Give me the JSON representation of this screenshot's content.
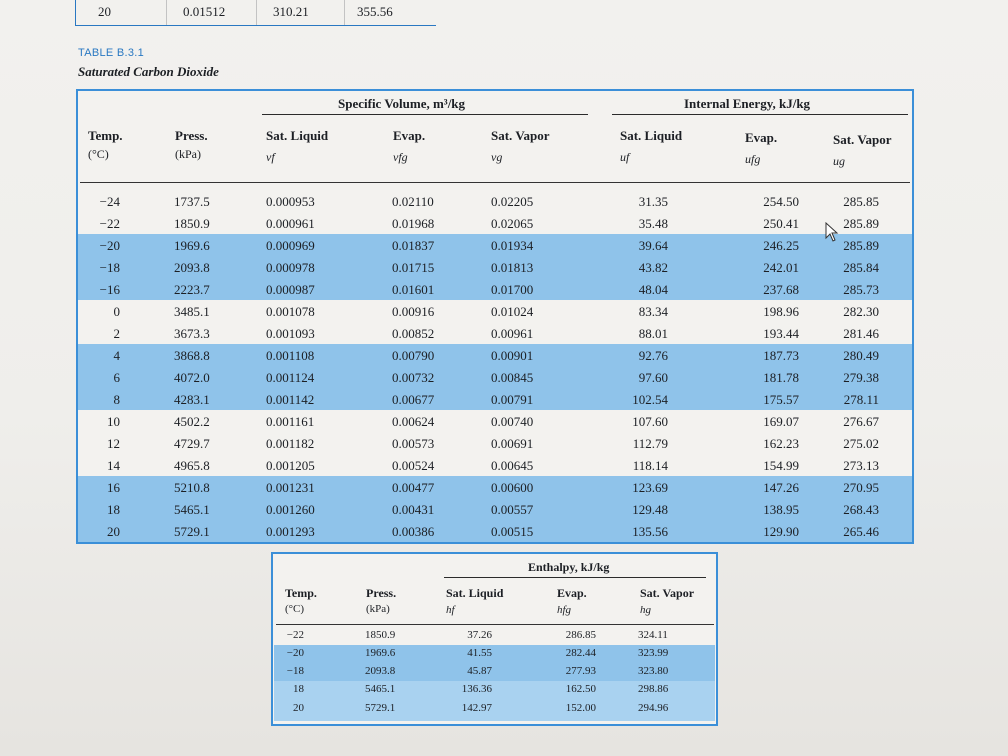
{
  "top_row": [
    "20",
    "0.01512",
    "310.21",
    "355.56"
  ],
  "table": {
    "label": "TABLE B.3.1",
    "title": "Saturated Carbon Dioxide",
    "groups": {
      "volume": "Specific Volume, m³/kg",
      "energy": "Internal Energy, kJ/kg"
    },
    "columns": {
      "temp": "Temp.",
      "temp_unit": "(°C)",
      "press": "Press.",
      "press_unit": "(kPa)",
      "vf": "Sat. Liquid",
      "vf_sym": "vf",
      "vfg": "Evap.",
      "vfg_sym": "vfg",
      "vg": "Sat. Vapor",
      "vg_sym": "vg",
      "uf": "Sat. Liquid",
      "uf_sym": "uf",
      "ufg": "Evap.",
      "ufg_sym": "ufg",
      "ug": "Sat. Vapor",
      "ug_sym": "ug"
    },
    "rows": [
      [
        "−24",
        "1737.5",
        "0.000953",
        "0.02110",
        "0.02205",
        "31.35",
        "254.50",
        "285.85"
      ],
      [
        "−22",
        "1850.9",
        "0.000961",
        "0.01968",
        "0.02065",
        "35.48",
        "250.41",
        "285.89"
      ],
      [
        "−20",
        "1969.6",
        "0.000969",
        "0.01837",
        "0.01934",
        "39.64",
        "246.25",
        "285.89"
      ],
      [
        "−18",
        "2093.8",
        "0.000978",
        "0.01715",
        "0.01813",
        "43.82",
        "242.01",
        "285.84"
      ],
      [
        "−16",
        "2223.7",
        "0.000987",
        "0.01601",
        "0.01700",
        "48.04",
        "237.68",
        "285.73"
      ],
      [
        "0",
        "3485.1",
        "0.001078",
        "0.00916",
        "0.01024",
        "83.34",
        "198.96",
        "282.30"
      ],
      [
        "2",
        "3673.3",
        "0.001093",
        "0.00852",
        "0.00961",
        "88.01",
        "193.44",
        "281.46"
      ],
      [
        "4",
        "3868.8",
        "0.001108",
        "0.00790",
        "0.00901",
        "92.76",
        "187.73",
        "280.49"
      ],
      [
        "6",
        "4072.0",
        "0.001124",
        "0.00732",
        "0.00845",
        "97.60",
        "181.78",
        "279.38"
      ],
      [
        "8",
        "4283.1",
        "0.001142",
        "0.00677",
        "0.00791",
        "102.54",
        "175.57",
        "278.11"
      ],
      [
        "10",
        "4502.2",
        "0.001161",
        "0.00624",
        "0.00740",
        "107.60",
        "169.07",
        "276.67"
      ],
      [
        "12",
        "4729.7",
        "0.001182",
        "0.00573",
        "0.00691",
        "112.79",
        "162.23",
        "275.02"
      ],
      [
        "14",
        "4965.8",
        "0.001205",
        "0.00524",
        "0.00645",
        "118.14",
        "154.99",
        "273.13"
      ],
      [
        "16",
        "5210.8",
        "0.001231",
        "0.00477",
        "0.00600",
        "123.69",
        "147.26",
        "270.95"
      ],
      [
        "18",
        "5465.1",
        "0.001260",
        "0.00431",
        "0.00557",
        "129.48",
        "138.95",
        "268.43"
      ],
      [
        "20",
        "5729.1",
        "0.001293",
        "0.00386",
        "0.00515",
        "135.56",
        "129.90",
        "265.46"
      ]
    ]
  },
  "enthalpy": {
    "group": "Enthalpy, kJ/kg",
    "columns": {
      "temp": "Temp.",
      "temp_unit": "(°C)",
      "press": "Press.",
      "press_unit": "(kPa)",
      "hf": "Sat. Liquid",
      "hf_sym": "hf",
      "hfg": "Evap.",
      "hfg_sym": "hfg",
      "hg": "Sat. Vapor",
      "hg_sym": "hg"
    },
    "rows": [
      [
        "−22",
        "1850.9",
        "37.26",
        "286.85",
        "324.11"
      ],
      [
        "−20",
        "1969.6",
        "41.55",
        "282.44",
        "323.99"
      ],
      [
        "−18",
        "2093.8",
        "45.87",
        "277.93",
        "323.80"
      ],
      [
        "18",
        "5465.1",
        "136.36",
        "162.50",
        "298.86"
      ],
      [
        "20",
        "5729.1",
        "142.97",
        "152.00",
        "294.96"
      ]
    ]
  },
  "colors": {
    "accent_blue": "#3b8fd8",
    "band_blue": "#8fc3ea"
  }
}
